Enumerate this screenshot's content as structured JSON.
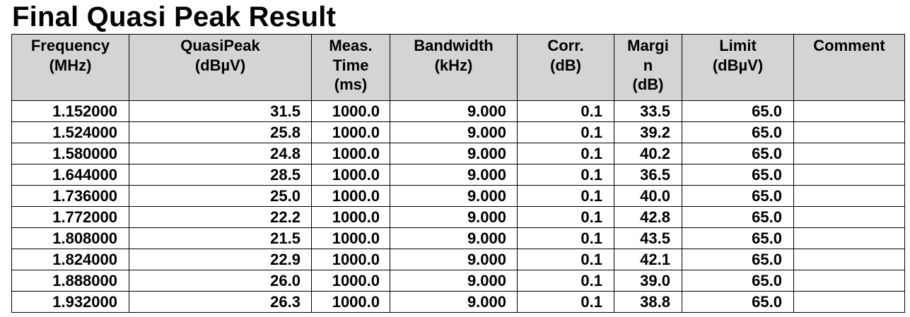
{
  "title": "Final Quasi Peak Result",
  "table": {
    "headers": [
      [
        "Frequency",
        "(MHz)"
      ],
      [
        "QuasiPeak",
        "(dBµV)"
      ],
      [
        "Meas.",
        "Time",
        "(ms)"
      ],
      [
        "Bandwidth",
        "(kHz)"
      ],
      [
        "Corr.",
        "(dB)"
      ],
      [
        "Margi",
        "n",
        "(dB)"
      ],
      [
        "Limit",
        "(dBµV)"
      ],
      [
        "Comment"
      ]
    ],
    "rows": [
      [
        "1.152000",
        "31.5",
        "1000.0",
        "9.000",
        "0.1",
        "33.5",
        "65.0",
        ""
      ],
      [
        "1.524000",
        "25.8",
        "1000.0",
        "9.000",
        "0.1",
        "39.2",
        "65.0",
        ""
      ],
      [
        "1.580000",
        "24.8",
        "1000.0",
        "9.000",
        "0.1",
        "40.2",
        "65.0",
        ""
      ],
      [
        "1.644000",
        "28.5",
        "1000.0",
        "9.000",
        "0.1",
        "36.5",
        "65.0",
        ""
      ],
      [
        "1.736000",
        "25.0",
        "1000.0",
        "9.000",
        "0.1",
        "40.0",
        "65.0",
        ""
      ],
      [
        "1.772000",
        "22.2",
        "1000.0",
        "9.000",
        "0.1",
        "42.8",
        "65.0",
        ""
      ],
      [
        "1.808000",
        "21.5",
        "1000.0",
        "9.000",
        "0.1",
        "43.5",
        "65.0",
        ""
      ],
      [
        "1.824000",
        "22.9",
        "1000.0",
        "9.000",
        "0.1",
        "42.1",
        "65.0",
        ""
      ],
      [
        "1.888000",
        "26.0",
        "1000.0",
        "9.000",
        "0.1",
        "39.0",
        "65.0",
        ""
      ],
      [
        "1.932000",
        "26.3",
        "1000.0",
        "9.000",
        "0.1",
        "38.8",
        "65.0",
        ""
      ]
    ]
  },
  "colors": {
    "header_background": "#d4d4d4",
    "border": "#000000",
    "text": "#000000"
  }
}
